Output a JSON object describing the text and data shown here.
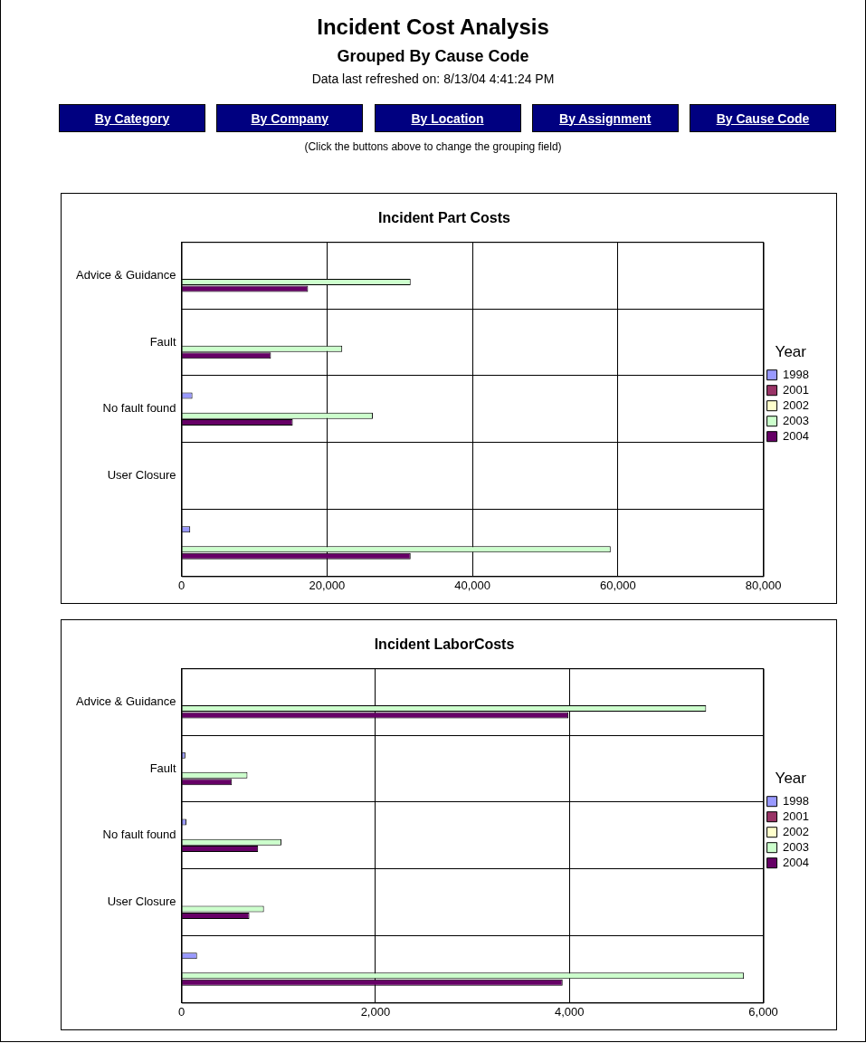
{
  "chart_data": [
    {
      "type": "other",
      "title": "Incident Cost Analysis",
      "subtitle": "Grouped By Cause Code",
      "annotations": [
        "Data last refreshed on: 8/13/04 4:41:24 PM",
        "By Category",
        "By Company",
        "By Location",
        "By Assignment",
        "By Cause Code",
        "(Click the buttons above to change the grouping field)"
      ]
    },
    {
      "type": "bar",
      "orientation": "horizontal",
      "title": "Incident Part Costs",
      "categories": [
        "Advice & Guidance",
        "Fault",
        "No fault found",
        "User Closure",
        null
      ],
      "legend": "right",
      "legend_title": "Year",
      "grid": true,
      "xlim": [
        0,
        80000
      ],
      "xticks": [
        {
          "value": 0,
          "label": "0"
        },
        {
          "value": 20000,
          "label": "20,000"
        },
        {
          "value": 40000,
          "label": "40,000"
        },
        {
          "value": 60000,
          "label": "60,000"
        },
        {
          "value": 80000,
          "label": "80,000"
        }
      ],
      "series": [
        {
          "name": "1998",
          "color": "#9999ff",
          "values": [
            null,
            null,
            1500,
            null,
            1200
          ]
        },
        {
          "name": "2001",
          "color": "#993366",
          "values": [
            null,
            null,
            null,
            null,
            null
          ]
        },
        {
          "name": "2002",
          "color": "#ffffcc",
          "values": [
            null,
            null,
            null,
            null,
            null
          ]
        },
        {
          "name": "2003",
          "color": "#ccffcc",
          "values": [
            31500,
            22100,
            26300,
            null,
            59000
          ]
        },
        {
          "name": "2004",
          "color": "#660066",
          "values": [
            17400,
            12300,
            15300,
            null,
            31500
          ]
        }
      ]
    },
    {
      "type": "bar",
      "orientation": "horizontal",
      "title": "Incident LaborCosts",
      "categories": [
        "Advice & Guidance",
        "Fault",
        "No fault found",
        "User Closure",
        null
      ],
      "legend": "right",
      "legend_title": "Year",
      "grid": true,
      "xlim": [
        0,
        6000
      ],
      "xticks": [
        {
          "value": 0,
          "label": "0"
        },
        {
          "value": 2000,
          "label": "2,000"
        },
        {
          "value": 4000,
          "label": "4,000"
        },
        {
          "value": 6000,
          "label": "6,000"
        }
      ],
      "series": [
        {
          "name": "1998",
          "color": "#9999ff",
          "values": [
            null,
            40,
            50,
            null,
            160
          ]
        },
        {
          "name": "2001",
          "color": "#993366",
          "values": [
            null,
            null,
            null,
            null,
            null
          ]
        },
        {
          "name": "2002",
          "color": "#ffffcc",
          "values": [
            null,
            null,
            null,
            null,
            null
          ]
        },
        {
          "name": "2003",
          "color": "#ccffcc",
          "values": [
            5410,
            680,
            1030,
            850,
            5800
          ]
        },
        {
          "name": "2004",
          "color": "#660066",
          "values": [
            3990,
            520,
            790,
            700,
            3930
          ]
        }
      ]
    }
  ]
}
